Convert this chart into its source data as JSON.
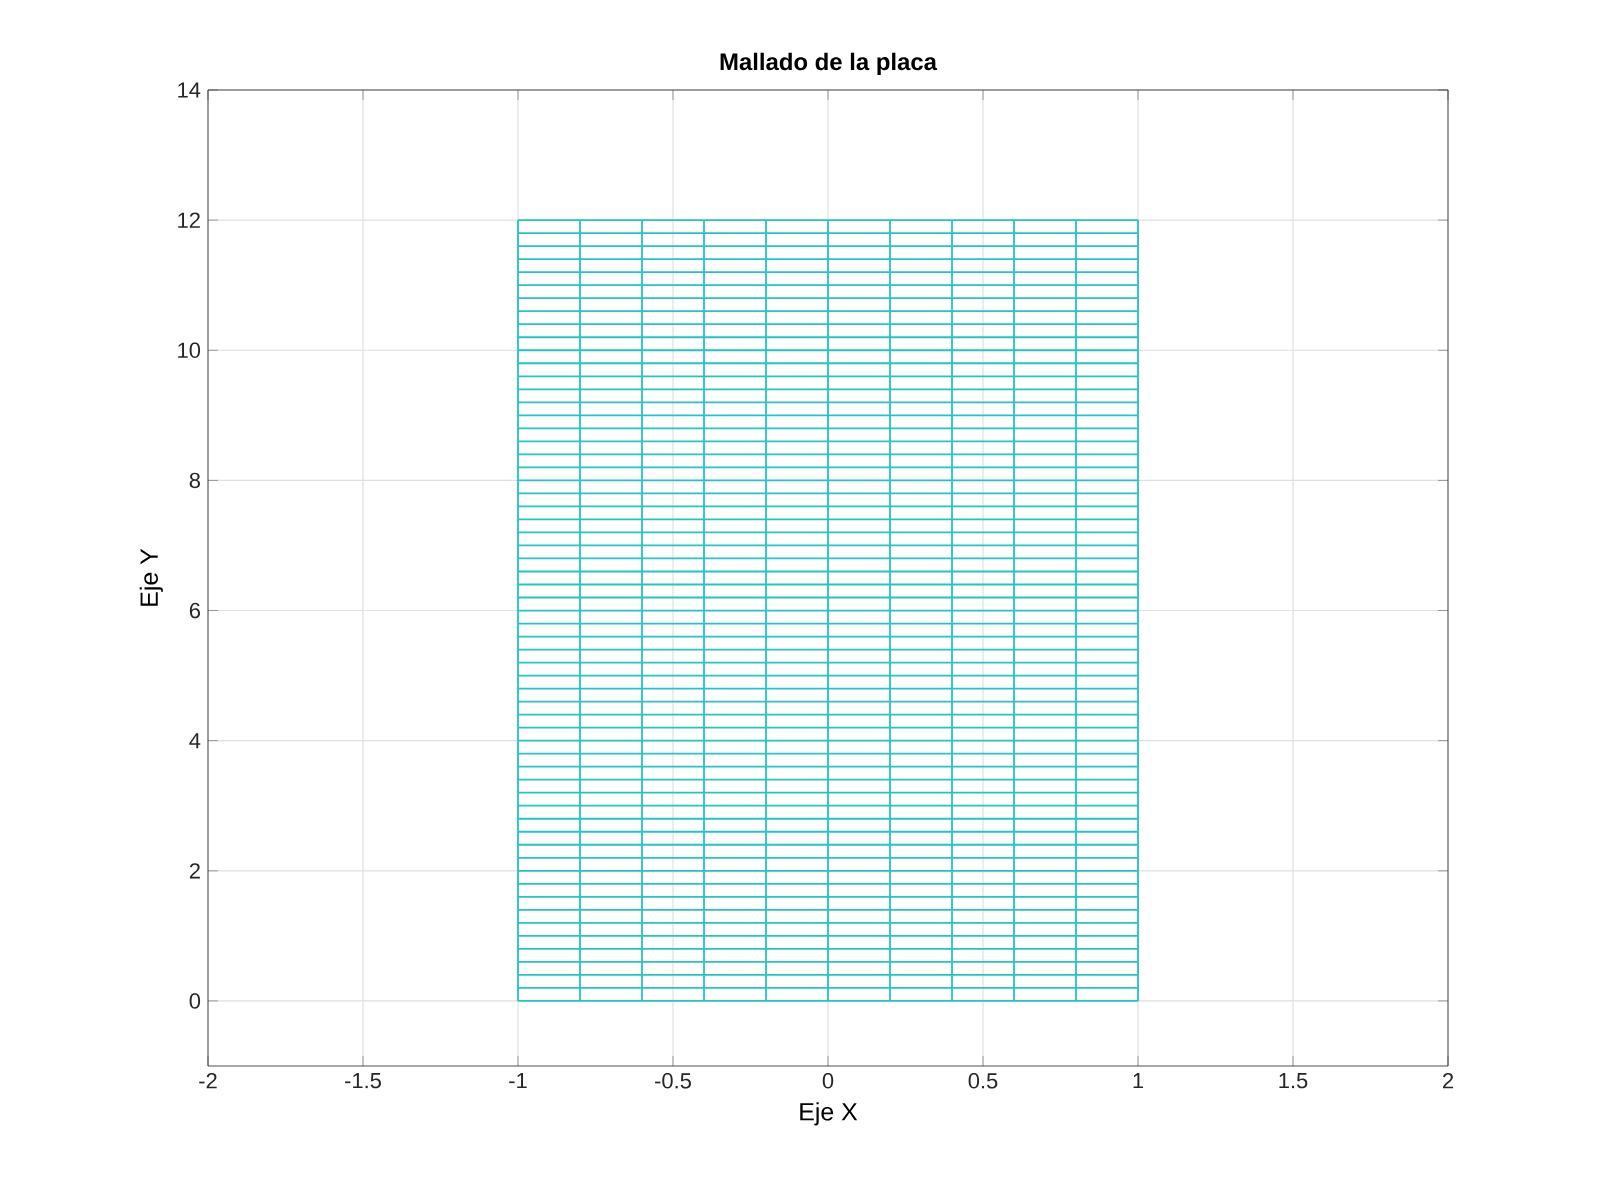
{
  "chart_data": {
    "type": "line",
    "title": "Mallado de la placa",
    "xlabel": "Eje X",
    "ylabel": "Eje Y",
    "xlim": [
      -2,
      2
    ],
    "ylim": [
      -1,
      14
    ],
    "xticks": [
      -2,
      -1.5,
      -1,
      -0.5,
      0,
      0.5,
      1,
      1.5,
      2
    ],
    "yticks": [
      0,
      2,
      4,
      6,
      8,
      10,
      12,
      14
    ],
    "grid": true,
    "line_style": "solid",
    "marker": "none",
    "series": [
      {
        "color": "#22c4c4",
        "x": [
          -1,
          -1
        ],
        "values": [
          0,
          12
        ]
      },
      {
        "color": "#22c4c4",
        "x": [
          -0.8,
          -0.8
        ],
        "values": [
          0,
          12
        ]
      },
      {
        "color": "#22c4c4",
        "x": [
          -0.6,
          -0.6
        ],
        "values": [
          0,
          12
        ]
      },
      {
        "color": "#22c4c4",
        "x": [
          -0.4,
          -0.4
        ],
        "values": [
          0,
          12
        ]
      },
      {
        "color": "#22c4c4",
        "x": [
          -0.2,
          -0.2
        ],
        "values": [
          0,
          12
        ]
      },
      {
        "color": "#22c4c4",
        "x": [
          0,
          0
        ],
        "values": [
          0,
          12
        ]
      },
      {
        "color": "#22c4c4",
        "x": [
          0.2,
          0.2
        ],
        "values": [
          0,
          12
        ]
      },
      {
        "color": "#22c4c4",
        "x": [
          0.4,
          0.4
        ],
        "values": [
          0,
          12
        ]
      },
      {
        "color": "#22c4c4",
        "x": [
          0.6,
          0.6
        ],
        "values": [
          0,
          12
        ]
      },
      {
        "color": "#22c4c4",
        "x": [
          0.8,
          0.8
        ],
        "values": [
          0,
          12
        ]
      },
      {
        "color": "#22c4c4",
        "x": [
          1,
          1
        ],
        "values": [
          0,
          12
        ]
      },
      {
        "color": "#22c4c4",
        "x": [
          -1,
          1
        ],
        "values": [
          0,
          0
        ]
      },
      {
        "color": "#22c4c4",
        "x": [
          -1,
          1
        ],
        "values": [
          0.2,
          0.2
        ]
      },
      {
        "color": "#22c4c4",
        "x": [
          -1,
          1
        ],
        "values": [
          0.4,
          0.4
        ]
      },
      {
        "color": "#22c4c4",
        "x": [
          -1,
          1
        ],
        "values": [
          0.6,
          0.6
        ]
      },
      {
        "color": "#22c4c4",
        "x": [
          -1,
          1
        ],
        "values": [
          0.8,
          0.8
        ]
      },
      {
        "color": "#22c4c4",
        "x": [
          -1,
          1
        ],
        "values": [
          1,
          1
        ]
      },
      {
        "color": "#22c4c4",
        "x": [
          -1,
          1
        ],
        "values": [
          1.2,
          1.2
        ]
      },
      {
        "color": "#22c4c4",
        "x": [
          -1,
          1
        ],
        "values": [
          1.4,
          1.4
        ]
      },
      {
        "color": "#22c4c4",
        "x": [
          -1,
          1
        ],
        "values": [
          1.6,
          1.6
        ]
      },
      {
        "color": "#22c4c4",
        "x": [
          -1,
          1
        ],
        "values": [
          1.8,
          1.8
        ]
      },
      {
        "color": "#22c4c4",
        "x": [
          -1,
          1
        ],
        "values": [
          2,
          2
        ]
      },
      {
        "color": "#22c4c4",
        "x": [
          -1,
          1
        ],
        "values": [
          2.2,
          2.2
        ]
      },
      {
        "color": "#22c4c4",
        "x": [
          -1,
          1
        ],
        "values": [
          2.4,
          2.4
        ]
      },
      {
        "color": "#22c4c4",
        "x": [
          -1,
          1
        ],
        "values": [
          2.6,
          2.6
        ]
      },
      {
        "color": "#22c4c4",
        "x": [
          -1,
          1
        ],
        "values": [
          2.8,
          2.8
        ]
      },
      {
        "color": "#22c4c4",
        "x": [
          -1,
          1
        ],
        "values": [
          3,
          3
        ]
      },
      {
        "color": "#22c4c4",
        "x": [
          -1,
          1
        ],
        "values": [
          3.2,
          3.2
        ]
      },
      {
        "color": "#22c4c4",
        "x": [
          -1,
          1
        ],
        "values": [
          3.4,
          3.4
        ]
      },
      {
        "color": "#22c4c4",
        "x": [
          -1,
          1
        ],
        "values": [
          3.6,
          3.6
        ]
      },
      {
        "color": "#22c4c4",
        "x": [
          -1,
          1
        ],
        "values": [
          3.8,
          3.8
        ]
      },
      {
        "color": "#22c4c4",
        "x": [
          -1,
          1
        ],
        "values": [
          4,
          4
        ]
      },
      {
        "color": "#22c4c4",
        "x": [
          -1,
          1
        ],
        "values": [
          4.2,
          4.2
        ]
      },
      {
        "color": "#22c4c4",
        "x": [
          -1,
          1
        ],
        "values": [
          4.4,
          4.4
        ]
      },
      {
        "color": "#22c4c4",
        "x": [
          -1,
          1
        ],
        "values": [
          4.6,
          4.6
        ]
      },
      {
        "color": "#22c4c4",
        "x": [
          -1,
          1
        ],
        "values": [
          4.8,
          4.8
        ]
      },
      {
        "color": "#22c4c4",
        "x": [
          -1,
          1
        ],
        "values": [
          5,
          5
        ]
      },
      {
        "color": "#22c4c4",
        "x": [
          -1,
          1
        ],
        "values": [
          5.2,
          5.2
        ]
      },
      {
        "color": "#22c4c4",
        "x": [
          -1,
          1
        ],
        "values": [
          5.4,
          5.4
        ]
      },
      {
        "color": "#22c4c4",
        "x": [
          -1,
          1
        ],
        "values": [
          5.6,
          5.6
        ]
      },
      {
        "color": "#22c4c4",
        "x": [
          -1,
          1
        ],
        "values": [
          5.8,
          5.8
        ]
      },
      {
        "color": "#22c4c4",
        "x": [
          -1,
          1
        ],
        "values": [
          6,
          6
        ]
      },
      {
        "color": "#22c4c4",
        "x": [
          -1,
          1
        ],
        "values": [
          6.2,
          6.2
        ]
      },
      {
        "color": "#22c4c4",
        "x": [
          -1,
          1
        ],
        "values": [
          6.4,
          6.4
        ]
      },
      {
        "color": "#22c4c4",
        "x": [
          -1,
          1
        ],
        "values": [
          6.6,
          6.6
        ]
      },
      {
        "color": "#22c4c4",
        "x": [
          -1,
          1
        ],
        "values": [
          6.8,
          6.8
        ]
      },
      {
        "color": "#22c4c4",
        "x": [
          -1,
          1
        ],
        "values": [
          7,
          7
        ]
      },
      {
        "color": "#22c4c4",
        "x": [
          -1,
          1
        ],
        "values": [
          7.2,
          7.2
        ]
      },
      {
        "color": "#22c4c4",
        "x": [
          -1,
          1
        ],
        "values": [
          7.4,
          7.4
        ]
      },
      {
        "color": "#22c4c4",
        "x": [
          -1,
          1
        ],
        "values": [
          7.6,
          7.6
        ]
      },
      {
        "color": "#22c4c4",
        "x": [
          -1,
          1
        ],
        "values": [
          7.8,
          7.8
        ]
      },
      {
        "color": "#22c4c4",
        "x": [
          -1,
          1
        ],
        "values": [
          8,
          8
        ]
      },
      {
        "color": "#22c4c4",
        "x": [
          -1,
          1
        ],
        "values": [
          8.2,
          8.2
        ]
      },
      {
        "color": "#22c4c4",
        "x": [
          -1,
          1
        ],
        "values": [
          8.4,
          8.4
        ]
      },
      {
        "color": "#22c4c4",
        "x": [
          -1,
          1
        ],
        "values": [
          8.6,
          8.6
        ]
      },
      {
        "color": "#22c4c4",
        "x": [
          -1,
          1
        ],
        "values": [
          8.8,
          8.8
        ]
      },
      {
        "color": "#22c4c4",
        "x": [
          -1,
          1
        ],
        "values": [
          9,
          9
        ]
      },
      {
        "color": "#22c4c4",
        "x": [
          -1,
          1
        ],
        "values": [
          9.2,
          9.2
        ]
      },
      {
        "color": "#22c4c4",
        "x": [
          -1,
          1
        ],
        "values": [
          9.4,
          9.4
        ]
      },
      {
        "color": "#22c4c4",
        "x": [
          -1,
          1
        ],
        "values": [
          9.6,
          9.6
        ]
      },
      {
        "color": "#22c4c4",
        "x": [
          -1,
          1
        ],
        "values": [
          9.8,
          9.8
        ]
      },
      {
        "color": "#22c4c4",
        "x": [
          -1,
          1
        ],
        "values": [
          10,
          10
        ]
      },
      {
        "color": "#22c4c4",
        "x": [
          -1,
          1
        ],
        "values": [
          10.2,
          10.2
        ]
      },
      {
        "color": "#22c4c4",
        "x": [
          -1,
          1
        ],
        "values": [
          10.4,
          10.4
        ]
      },
      {
        "color": "#22c4c4",
        "x": [
          -1,
          1
        ],
        "values": [
          10.6,
          10.6
        ]
      },
      {
        "color": "#22c4c4",
        "x": [
          -1,
          1
        ],
        "values": [
          10.8,
          10.8
        ]
      },
      {
        "color": "#22c4c4",
        "x": [
          -1,
          1
        ],
        "values": [
          11,
          11
        ]
      },
      {
        "color": "#22c4c4",
        "x": [
          -1,
          1
        ],
        "values": [
          11.2,
          11.2
        ]
      },
      {
        "color": "#22c4c4",
        "x": [
          -1,
          1
        ],
        "values": [
          11.4,
          11.4
        ]
      },
      {
        "color": "#22c4c4",
        "x": [
          -1,
          1
        ],
        "values": [
          11.6,
          11.6
        ]
      },
      {
        "color": "#22c4c4",
        "x": [
          -1,
          1
        ],
        "values": [
          11.8,
          11.8
        ]
      },
      {
        "color": "#22c4c4",
        "x": [
          -1,
          1
        ],
        "values": [
          12,
          12
        ]
      }
    ]
  }
}
